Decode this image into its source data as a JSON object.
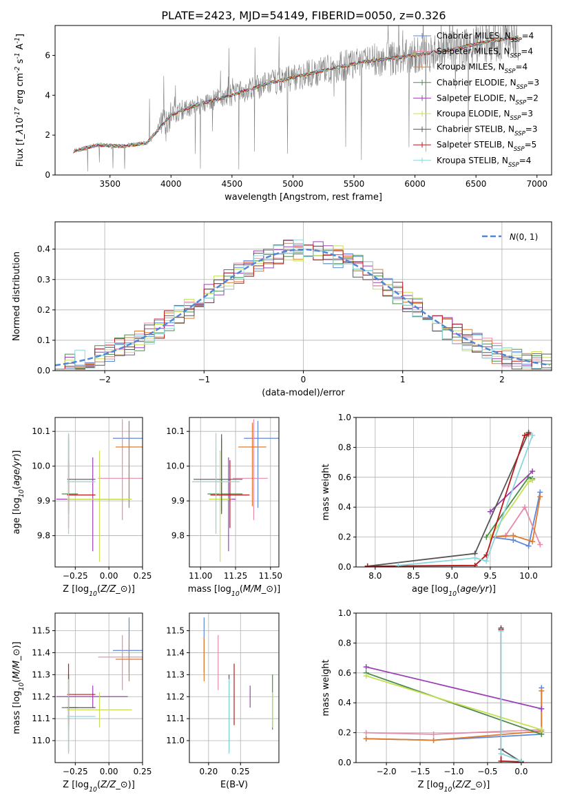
{
  "figure_title": "PLATE=2423, MJD=54149, FIBERID=0050, z=0.326",
  "colors": {
    "Chabrier MILES": "#5e86d8",
    "Salpeter MILES": "#e58aa8",
    "Kroupa MILES": "#e07a2a",
    "Chabrier ELODIE": "#4a8a4a",
    "Salpeter ELODIE": "#9b3fb5",
    "Kroupa ELODIE": "#c5e052",
    "Chabrier STELIB": "#555555",
    "Salpeter STELIB": "#b81818",
    "Kroupa STELIB": "#8ad6dc",
    "data": "#808080",
    "gaussian": "#4f86d6"
  },
  "chart_data": [
    {
      "id": "spectrum",
      "type": "line",
      "title": "PLATE=2423, MJD=54149, FIBERID=0050, z=0.326",
      "xlabel": "wavelength [Angstrom, rest frame]",
      "ylabel": "Flux [f$_\\lambda$10$^{-17}$ erg cm$^{-2}$ s$^{-1}$ A$^{-1}$]",
      "xlim": [
        3050,
        7120
      ],
      "ylim": [
        0,
        7.5
      ],
      "xticks": [
        3500,
        4000,
        4500,
        5000,
        5500,
        6000,
        6500,
        7000
      ],
      "yticks": [
        0,
        2,
        4,
        6
      ],
      "continuum": [
        [
          3200,
          1.2
        ],
        [
          3400,
          1.5
        ],
        [
          3600,
          1.45
        ],
        [
          3800,
          1.6
        ],
        [
          4000,
          3.0
        ],
        [
          4200,
          3.5
        ],
        [
          4500,
          4.0
        ],
        [
          4800,
          4.6
        ],
        [
          5000,
          4.9
        ],
        [
          5300,
          5.3
        ],
        [
          5600,
          5.7
        ],
        [
          6000,
          6.0
        ],
        [
          6300,
          6.3
        ],
        [
          6600,
          6.7
        ],
        [
          6850,
          6.9
        ]
      ],
      "legend": [
        {
          "name": "Chabrier MILES",
          "label": "Chabrier MILES, N$_{SSP}$=4"
        },
        {
          "name": "Salpeter MILES",
          "label": "Salpeter MILES, N$_{SSP}$=4"
        },
        {
          "name": "Kroupa MILES",
          "label": "Kroupa MILES, N$_{SSP}$=4"
        },
        {
          "name": "Chabrier ELODIE",
          "label": "Chabrier ELODIE, N$_{SSP}$=3"
        },
        {
          "name": "Salpeter ELODIE",
          "label": "Salpeter ELODIE, N$_{SSP}$=2"
        },
        {
          "name": "Kroupa ELODIE",
          "label": "Kroupa ELODIE, N$_{SSP}$=3"
        },
        {
          "name": "Chabrier STELIB",
          "label": "Chabrier STELIB, N$_{SSP}$=3"
        },
        {
          "name": "Salpeter STELIB",
          "label": "Salpeter STELIB, N$_{SSP}$=5"
        },
        {
          "name": "Kroupa STELIB",
          "label": "Kroupa STELIB, N$_{SSP}$=4"
        }
      ],
      "legend_loc": "upper right"
    },
    {
      "id": "residuals",
      "type": "line",
      "xlabel": "(data-model)/error",
      "ylabel": "Normed distribution",
      "xlim": [
        -2.5,
        2.5
      ],
      "ylim": [
        0,
        0.49
      ],
      "xticks": [
        -2,
        -1,
        0,
        1,
        2
      ],
      "yticks": [
        0.0,
        0.1,
        0.2,
        0.3,
        0.4
      ],
      "grid": true,
      "gaussian_label": "$\\mathcal{N}(0,1)$",
      "legend_loc": "upper right"
    },
    {
      "id": "age_vs_Z",
      "type": "scatter",
      "xlabel": "Z [log$_{10}$($Z/Z_\\odot$)]",
      "ylabel": "age  [log$_{10}$($age/yr$)]",
      "xlim": [
        -0.4,
        0.25
      ],
      "ylim": [
        9.71,
        10.14
      ],
      "xticks": [
        -0.25,
        0.0,
        0.25
      ],
      "yticks": [
        9.8,
        9.9,
        10.0,
        10.1
      ],
      "grid": true,
      "points": [
        {
          "model": "Chabrier MILES",
          "x": 0.15,
          "xerr": [
            0.12,
            0.1
          ],
          "y": 10.08,
          "yerr": [
            0.2,
            0.05
          ]
        },
        {
          "model": "Salpeter MILES",
          "x": 0.1,
          "xerr": [
            0.18,
            0.15
          ],
          "y": 9.965,
          "yerr": [
            0.12,
            0.17
          ]
        },
        {
          "model": "Kroupa MILES",
          "x": 0.15,
          "xerr": [
            0.1,
            0.1
          ],
          "y": 10.055,
          "yerr": [
            0.17,
            0.07
          ]
        },
        {
          "model": "Chabrier ELODIE",
          "x": -0.3,
          "xerr": [
            0.05,
            0.07
          ],
          "y": 9.92,
          "yerr": [
            0.05,
            0.16
          ]
        },
        {
          "model": "Salpeter ELODIE",
          "x": -0.12,
          "xerr": [
            0.27,
            0.26
          ],
          "y": 9.905,
          "yerr": [
            0.15,
            0.12
          ]
        },
        {
          "model": "Kroupa ELODIE",
          "x": -0.07,
          "xerr": [
            0.24,
            0.24
          ],
          "y": 9.905,
          "yerr": [
            0.18,
            0.14
          ]
        },
        {
          "model": "Chabrier STELIB",
          "x": -0.3,
          "xerr": [
            0.01,
            0.2
          ],
          "y": 9.962,
          "yerr": [
            0.1,
            0.13
          ]
        },
        {
          "model": "Salpeter STELIB",
          "x": -0.3,
          "xerr": [
            0.01,
            0.2
          ],
          "y": 9.917,
          "yerr": [
            0.095,
            0.1
          ]
        },
        {
          "model": "Kroupa STELIB",
          "x": -0.3,
          "xerr": [
            0.01,
            0.2
          ],
          "y": 9.955,
          "yerr": [
            0.15,
            0.14
          ]
        }
      ]
    },
    {
      "id": "age_vs_mass",
      "type": "scatter",
      "xlabel": "mass [log$_{10}$($M/M_\\odot$)]",
      "ylabel": "",
      "xlim": [
        10.92,
        11.56
      ],
      "ylim": [
        9.71,
        10.14
      ],
      "xticks": [
        11.0,
        11.25,
        11.5
      ],
      "yticks": [
        9.8,
        9.9,
        10.0,
        10.1
      ],
      "grid": true,
      "points": [
        {
          "model": "Chabrier MILES",
          "x": 11.41,
          "xerr": [
            0.1,
            0.15
          ],
          "y": 10.08,
          "yerr": [
            0.2,
            0.05
          ]
        },
        {
          "model": "Salpeter MILES",
          "x": 11.38,
          "xerr": [
            0.15,
            0.1
          ],
          "y": 9.965,
          "yerr": [
            0.12,
            0.17
          ]
        },
        {
          "model": "Kroupa MILES",
          "x": 11.37,
          "xerr": [
            0.1,
            0.1
          ],
          "y": 10.055,
          "yerr": [
            0.17,
            0.07
          ]
        },
        {
          "model": "Chabrier ELODIE",
          "x": 11.15,
          "xerr": [
            0.1,
            0.15
          ],
          "y": 9.92,
          "yerr": [
            0.05,
            0.16
          ]
        },
        {
          "model": "Salpeter ELODIE",
          "x": 11.2,
          "xerr": [
            0.05,
            0.05
          ],
          "y": 9.905,
          "yerr": [
            0.15,
            0.12
          ]
        },
        {
          "model": "Kroupa ELODIE",
          "x": 11.14,
          "xerr": [
            0.08,
            0.08
          ],
          "y": 9.905,
          "yerr": [
            0.18,
            0.14
          ]
        },
        {
          "model": "Chabrier STELIB",
          "x": 11.15,
          "xerr": [
            0.2,
            0.15
          ],
          "y": 9.962,
          "yerr": [
            0.1,
            0.13
          ]
        },
        {
          "model": "Salpeter STELIB",
          "x": 11.21,
          "xerr": [
            0.14,
            0.14
          ],
          "y": 9.917,
          "yerr": [
            0.095,
            0.1
          ]
        },
        {
          "model": "Kroupa STELIB",
          "x": 11.11,
          "xerr": [
            0.17,
            0.17
          ],
          "y": 9.955,
          "yerr": [
            0.15,
            0.14
          ]
        }
      ]
    },
    {
      "id": "mass_weight_vs_age",
      "type": "line",
      "xlabel": "age  [log$_{10}$($age/yr$)]",
      "ylabel": "mass weight",
      "xlim": [
        7.75,
        10.3
      ],
      "ylim": [
        0,
        1.0
      ],
      "xticks": [
        8.0,
        8.5,
        9.0,
        9.5,
        10.0
      ],
      "yticks": [
        0.0,
        0.2,
        0.4,
        0.6,
        0.8,
        1.0
      ],
      "grid": true,
      "series": [
        {
          "model": "Chabrier MILES",
          "x": [
            9.5,
            9.8,
            10.0,
            10.15
          ],
          "y": [
            0.2,
            0.18,
            0.14,
            0.5
          ]
        },
        {
          "model": "Salpeter MILES",
          "x": [
            9.5,
            9.7,
            9.95,
            10.15
          ],
          "y": [
            0.2,
            0.21,
            0.4,
            0.15
          ]
        },
        {
          "model": "Kroupa MILES",
          "x": [
            9.5,
            9.8,
            10.05,
            10.15
          ],
          "y": [
            0.2,
            0.21,
            0.17,
            0.47
          ]
        },
        {
          "model": "Chabrier ELODIE",
          "x": [
            9.45,
            10.0,
            10.05
          ],
          "y": [
            0.2,
            0.6,
            0.59
          ]
        },
        {
          "model": "Salpeter ELODIE",
          "x": [
            9.5,
            10.05
          ],
          "y": [
            0.37,
            0.64
          ]
        },
        {
          "model": "Kroupa ELODIE",
          "x": [
            9.5,
            10.0,
            10.05
          ],
          "y": [
            0.2,
            0.57,
            0.58
          ]
        },
        {
          "model": "Chabrier STELIB",
          "x": [
            7.9,
            9.3,
            10.0
          ],
          "y": [
            0.005,
            0.09,
            0.9
          ]
        },
        {
          "model": "Salpeter STELIB",
          "x": [
            7.9,
            9.3,
            9.45,
            9.95,
            10.0
          ],
          "y": [
            0.005,
            0.01,
            0.08,
            0.88,
            0.89
          ]
        },
        {
          "model": "Kroupa STELIB",
          "x": [
            8.3,
            9.3,
            9.45,
            10.05
          ],
          "y": [
            0.01,
            0.06,
            0.04,
            0.88
          ]
        }
      ]
    },
    {
      "id": "mass_vs_Z",
      "type": "scatter",
      "xlabel": "Z [log$_{10}$($Z/Z_\\odot$)]",
      "ylabel": "mass [log$_{10}$($M/M_\\odot$)]",
      "xlim": [
        -0.4,
        0.25
      ],
      "ylim": [
        10.9,
        11.58
      ],
      "xticks": [
        -0.25,
        0.0,
        0.25
      ],
      "yticks": [
        11.0,
        11.1,
        11.2,
        11.3,
        11.4,
        11.5
      ],
      "grid": true,
      "points": [
        {
          "model": "Chabrier MILES",
          "x": 0.15,
          "xerr": [
            0.12,
            0.1
          ],
          "y": 11.41,
          "yerr": [
            0.1,
            0.15
          ]
        },
        {
          "model": "Salpeter MILES",
          "x": 0.1,
          "xerr": [
            0.18,
            0.15
          ],
          "y": 11.38,
          "yerr": [
            0.15,
            0.1
          ]
        },
        {
          "model": "Kroupa MILES",
          "x": 0.15,
          "xerr": [
            0.1,
            0.1
          ],
          "y": 11.37,
          "yerr": [
            0.1,
            0.1
          ]
        },
        {
          "model": "Chabrier ELODIE",
          "x": -0.3,
          "xerr": [
            0.05,
            0.07
          ],
          "y": 11.15,
          "yerr": [
            0.1,
            0.15
          ]
        },
        {
          "model": "Salpeter ELODIE",
          "x": -0.12,
          "xerr": [
            0.27,
            0.26
          ],
          "y": 11.2,
          "yerr": [
            0.05,
            0.05
          ]
        },
        {
          "model": "Kroupa ELODIE",
          "x": -0.07,
          "xerr": [
            0.24,
            0.24
          ],
          "y": 11.14,
          "yerr": [
            0.08,
            0.08
          ]
        },
        {
          "model": "Chabrier STELIB",
          "x": -0.3,
          "xerr": [
            0.01,
            0.2
          ],
          "y": 11.15,
          "yerr": [
            0.2,
            0.15
          ]
        },
        {
          "model": "Salpeter STELIB",
          "x": -0.3,
          "xerr": [
            0.01,
            0.2
          ],
          "y": 11.21,
          "yerr": [
            0.14,
            0.14
          ]
        },
        {
          "model": "Kroupa STELIB",
          "x": -0.3,
          "xerr": [
            0.01,
            0.2
          ],
          "y": 11.11,
          "yerr": [
            0.17,
            0.17
          ]
        }
      ]
    },
    {
      "id": "mass_vs_ebv",
      "type": "scatter",
      "xlabel": "E(B-V)",
      "ylabel": "",
      "xlim": [
        0.17,
        0.31
      ],
      "ylim": [
        10.9,
        11.58
      ],
      "xticks": [
        0.2,
        0.25
      ],
      "yticks": [
        11.0,
        11.1,
        11.2,
        11.3,
        11.4,
        11.5
      ],
      "grid": true,
      "points": [
        {
          "model": "Chabrier MILES",
          "x": 0.193,
          "y": 11.41,
          "yerr": [
            0.1,
            0.15
          ]
        },
        {
          "model": "Salpeter MILES",
          "x": 0.215,
          "y": 11.38,
          "yerr": [
            0.15,
            0.1
          ]
        },
        {
          "model": "Kroupa MILES",
          "x": 0.193,
          "y": 11.37,
          "yerr": [
            0.1,
            0.1
          ]
        },
        {
          "model": "Chabrier ELODIE",
          "x": 0.3,
          "y": 11.15,
          "yerr": [
            0.1,
            0.15
          ]
        },
        {
          "model": "Salpeter ELODIE",
          "x": 0.265,
          "y": 11.2,
          "yerr": [
            0.05,
            0.05
          ]
        },
        {
          "model": "Kroupa ELODIE",
          "x": 0.3,
          "y": 11.14,
          "yerr": [
            0.08,
            0.08
          ]
        },
        {
          "model": "Chabrier STELIB",
          "x": 0.232,
          "y": 11.15,
          "yerr": [
            0.2,
            0.15
          ]
        },
        {
          "model": "Salpeter STELIB",
          "x": 0.24,
          "y": 11.21,
          "yerr": [
            0.14,
            0.14
          ]
        },
        {
          "model": "Kroupa STELIB",
          "x": 0.232,
          "y": 11.11,
          "yerr": [
            0.17,
            0.17
          ]
        }
      ]
    },
    {
      "id": "mass_weight_vs_Z",
      "type": "line",
      "xlabel": "Z [log$_{10}$($Z/Z_\\odot$)]",
      "ylabel": "mass weight",
      "xlim": [
        -2.45,
        0.45
      ],
      "ylim": [
        0,
        1.0
      ],
      "xticks": [
        -2.0,
        -1.5,
        -1.0,
        -0.5,
        0.0
      ],
      "yticks": [
        0.0,
        0.2,
        0.4,
        0.6,
        0.8,
        1.0
      ],
      "grid": true,
      "series": [
        {
          "model": "Chabrier MILES",
          "x": [
            -2.3,
            -1.3,
            0.3,
            0.3
          ],
          "y": [
            0.16,
            0.15,
            0.19,
            0.5
          ]
        },
        {
          "model": "Salpeter MILES",
          "x": [
            -2.3,
            -1.3,
            0.3
          ],
          "y": [
            0.2,
            0.19,
            0.22
          ]
        },
        {
          "model": "Kroupa MILES",
          "x": [
            -2.3,
            -1.3,
            0.3,
            0.3
          ],
          "y": [
            0.16,
            0.15,
            0.21,
            0.48
          ]
        },
        {
          "model": "Chabrier ELODIE",
          "x": [
            -2.3,
            0.3
          ],
          "y": [
            0.6,
            0.19
          ]
        },
        {
          "model": "Salpeter ELODIE",
          "x": [
            -2.3,
            0.3
          ],
          "y": [
            0.64,
            0.36
          ]
        },
        {
          "model": "Kroupa ELODIE",
          "x": [
            -2.3,
            0.3
          ],
          "y": [
            0.58,
            0.22
          ]
        },
        {
          "model": "Chabrier STELIB",
          "x": [
            -0.3,
            -0.3,
            0.0
          ],
          "y": [
            0.9,
            0.09,
            0.005
          ]
        },
        {
          "model": "Salpeter STELIB",
          "x": [
            -0.3,
            -0.3,
            0.0
          ],
          "y": [
            0.89,
            0.01,
            0.005
          ]
        },
        {
          "model": "Kroupa STELIB",
          "x": [
            -0.3,
            -0.3,
            0.0
          ],
          "y": [
            0.88,
            0.06,
            0.01
          ]
        }
      ]
    }
  ]
}
